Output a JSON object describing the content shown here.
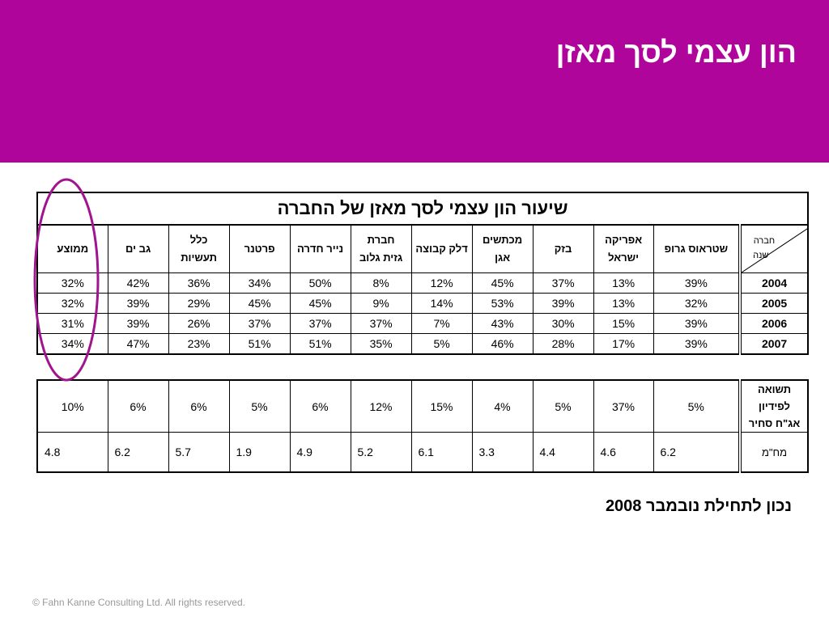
{
  "header": {
    "title": "הון עצמי לסך מאזן",
    "color": "#B0059B"
  },
  "table1": {
    "title": "שיעור הון עצמי לסך מאזן של החברה",
    "corner_top": "חברה",
    "corner_bottom": "שנה",
    "columns": [
      [
        "שטראוס גרופ"
      ],
      [
        "אפריקה",
        "ישראל"
      ],
      [
        "בזק"
      ],
      [
        "מכתשים",
        "אגן"
      ],
      [
        "דלק קבוצה"
      ],
      [
        "חברת",
        "גזית גלוב"
      ],
      [
        "נייר חדרה"
      ],
      [
        "פרטנר"
      ],
      [
        "כלל",
        "תעשיות"
      ],
      [
        "גב ים"
      ],
      [
        "ממוצע"
      ]
    ],
    "rows": [
      {
        "year": "2004",
        "values": [
          "39%",
          "13%",
          "37%",
          "45%",
          "12%",
          "8%",
          "50%",
          "34%",
          "36%",
          "42%",
          "32%"
        ]
      },
      {
        "year": "2005",
        "values": [
          "32%",
          "13%",
          "39%",
          "53%",
          "14%",
          "9%",
          "45%",
          "45%",
          "29%",
          "39%",
          "32%"
        ]
      },
      {
        "year": "2006",
        "values": [
          "39%",
          "15%",
          "30%",
          "43%",
          "7%",
          "37%",
          "37%",
          "37%",
          "26%",
          "39%",
          "31%"
        ]
      },
      {
        "year": "2007",
        "values": [
          "39%",
          "17%",
          "28%",
          "46%",
          "5%",
          "35%",
          "51%",
          "51%",
          "23%",
          "47%",
          "34%"
        ]
      }
    ]
  },
  "table2": {
    "rows": [
      {
        "label": [
          "תשואה",
          "לפידיון",
          "אג\"ח סחיר"
        ],
        "values": [
          "5%",
          "37%",
          "5%",
          "4%",
          "15%",
          "12%",
          "6%",
          "5%",
          "6%",
          "6%",
          "10%"
        ]
      },
      {
        "label": [
          "מח\"מ"
        ],
        "values": [
          "6.2",
          "4.6",
          "4.4",
          "3.3",
          "6.1",
          "5.2",
          "4.9",
          "1.9",
          "5.7",
          "6.2",
          "4.8"
        ]
      }
    ]
  },
  "note": "נכון לתחילת נובמבר 2008",
  "footer": "© Fahn Kanne Consulting Ltd. All rights reserved.",
  "annotation_color": "#A0148F"
}
